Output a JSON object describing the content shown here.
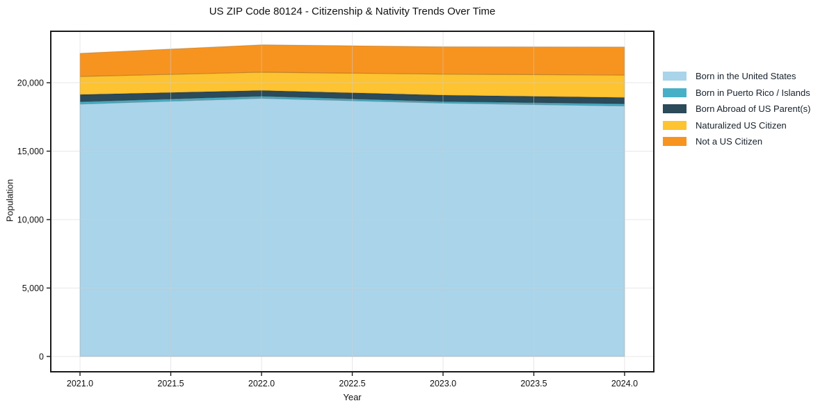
{
  "title": "US ZIP Code 80124 - Citizenship & Nativity Trends Over Time",
  "chart_data": {
    "type": "area",
    "stacked": true,
    "x": [
      2021,
      2022,
      2023,
      2024
    ],
    "series": [
      {
        "name": "Born in the United States",
        "color": "#a9d4ea",
        "values": [
          18450,
          18870,
          18520,
          18310
        ]
      },
      {
        "name": "Born in Puerto Rico / Islands",
        "color": "#48b0c6",
        "values": [
          160,
          150,
          110,
          150
        ]
      },
      {
        "name": "Born Abroad of US Parent(s)",
        "color": "#2b4a5a",
        "values": [
          520,
          410,
          460,
          460
        ]
      },
      {
        "name": "Naturalized US Citizen",
        "color": "#fdc330",
        "values": [
          1330,
          1340,
          1540,
          1640
        ]
      },
      {
        "name": "Not a US Citizen",
        "color": "#f79420",
        "values": [
          1690,
          2000,
          2000,
          2050
        ]
      }
    ],
    "xlabel": "Year",
    "ylabel": "Population",
    "x_ticks": [
      2021.0,
      2021.5,
      2022.0,
      2022.5,
      2023.0,
      2023.5,
      2024.0
    ],
    "x_tick_labels": [
      "2021.0",
      "2021.5",
      "2022.0",
      "2022.5",
      "2023.0",
      "2023.5",
      "2024.0"
    ],
    "y_ticks": [
      0,
      5000,
      10000,
      15000,
      20000
    ],
    "y_tick_labels": [
      "0",
      "5,000",
      "10,000",
      "15,000",
      "20,000"
    ],
    "xlim": [
      2020.839,
      2024.161
    ],
    "ylim": [
      -1120,
      23760
    ],
    "grid": true,
    "legend_position": "right",
    "colors": {
      "spine": "#1a1a1a",
      "grid": "rgba(208,208,208,0.5)",
      "band_edge": "rgba(0,0,0,0.15)"
    }
  }
}
